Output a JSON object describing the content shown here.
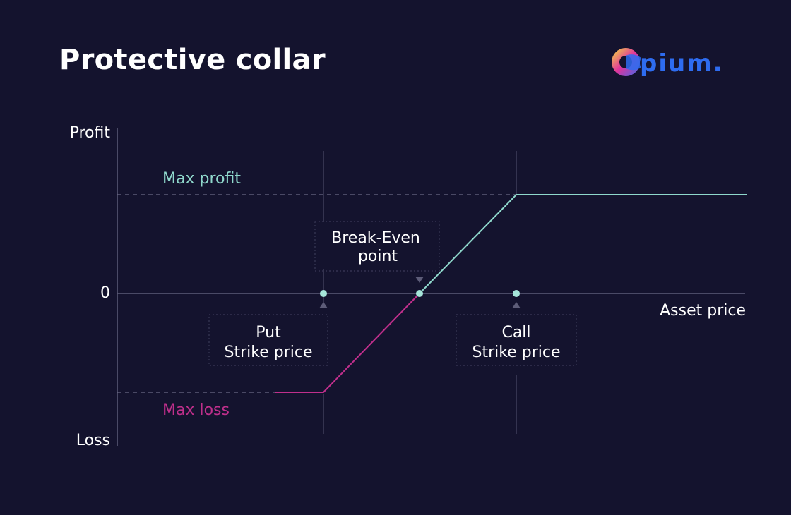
{
  "title": "Protective collar",
  "logo": {
    "text": "pium.",
    "icon": "opium-logo-o"
  },
  "colors": {
    "background": "#14132e",
    "profit": "#8fd8cc",
    "loss": "#c02f8c",
    "axis": "#5d5c78",
    "text": "#ffffff",
    "marker": "#a6e6da",
    "logo_blue": "#2e6cf0"
  },
  "axes": {
    "y_top": "Profit",
    "y_bottom": "Loss",
    "zero": "0",
    "x": "Asset price"
  },
  "levels": {
    "max_profit": "Max profit",
    "max_loss": "Max loss"
  },
  "points": {
    "put": {
      "line1": "Put",
      "line2": "Strike price"
    },
    "break_even": {
      "line1": "Break-Even",
      "line2": "point"
    },
    "call": {
      "line1": "Call",
      "line2": "Strike price"
    }
  }
}
